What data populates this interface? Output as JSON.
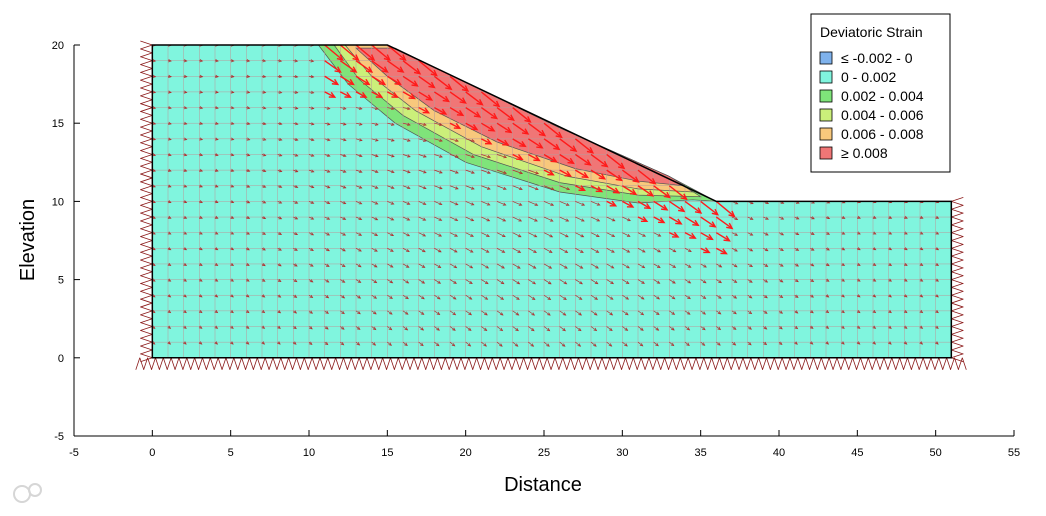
{
  "chart_data": {
    "type": "heatmap",
    "title": "",
    "xlabel": "Distance",
    "ylabel": "Elevation",
    "xlim": [
      -5,
      55
    ],
    "ylim": [
      -5,
      20
    ],
    "xticks": [
      -5,
      0,
      5,
      10,
      15,
      20,
      25,
      30,
      35,
      40,
      45,
      50,
      55
    ],
    "yticks": [
      -5,
      0,
      5,
      10,
      15,
      20
    ],
    "grid": false,
    "legend_position": "top-right",
    "legend": {
      "title": "Deviatoric Strain",
      "entries": [
        {
          "label": "≤ -0.002 - 0",
          "color": "#7fb2ec"
        },
        {
          "label": "0 - 0.002",
          "color": "#80f5de"
        },
        {
          "label": "0.002 - 0.004",
          "color": "#7fe47a"
        },
        {
          "label": "0.004 - 0.006",
          "color": "#cbef7a"
        },
        {
          "label": "0.006 - 0.008",
          "color": "#f8c87c"
        },
        {
          "label": "≥ 0.008",
          "color": "#f07676"
        }
      ]
    },
    "geometry": {
      "slope_outline": [
        [
          0,
          0
        ],
        [
          0,
          20
        ],
        [
          15,
          20
        ],
        [
          36,
          10
        ],
        [
          51,
          10
        ],
        [
          51,
          0
        ]
      ],
      "mesh_spacing": 1
    },
    "strain_zones": [
      {
        "level": "0.002 - 0.004",
        "color": "#7fe47a",
        "boundary": [
          [
            10.6,
            20
          ],
          [
            12.5,
            17.5
          ],
          [
            15.5,
            15
          ],
          [
            20,
            12.5
          ],
          [
            26,
            10.6
          ],
          [
            31,
            9.9
          ],
          [
            34.5,
            10.1
          ],
          [
            36,
            10
          ],
          [
            33,
            11.6
          ],
          [
            26,
            14.7
          ],
          [
            20,
            17.6
          ],
          [
            15,
            20
          ]
        ]
      },
      {
        "level": "0.004 - 0.006",
        "color": "#cbef7a",
        "boundary": [
          [
            11.6,
            20
          ],
          [
            13.2,
            17.8
          ],
          [
            16,
            15.5
          ],
          [
            20.5,
            13
          ],
          [
            26,
            11.2
          ],
          [
            31,
            10.4
          ],
          [
            35,
            10.3
          ],
          [
            33,
            11.6
          ],
          [
            26,
            14.7
          ],
          [
            20,
            17.6
          ],
          [
            15,
            20
          ]
        ]
      },
      {
        "level": "0.006 - 0.008",
        "color": "#f8c87c",
        "boundary": [
          [
            12.3,
            20
          ],
          [
            14,
            18
          ],
          [
            16.8,
            15.8
          ],
          [
            21,
            13.5
          ],
          [
            26.5,
            11.6
          ],
          [
            31,
            10.8
          ],
          [
            34.5,
            10.6
          ],
          [
            33,
            11.6
          ],
          [
            26,
            14.7
          ],
          [
            20,
            17.6
          ],
          [
            15,
            20
          ]
        ]
      },
      {
        "level": "≥ 0.008",
        "color": "#f07676",
        "boundary": [
          [
            13,
            19.8
          ],
          [
            15,
            18
          ],
          [
            18,
            15.8
          ],
          [
            22,
            13.8
          ],
          [
            27,
            12.1
          ],
          [
            31,
            11.3
          ],
          [
            34,
            11
          ],
          [
            33,
            11.6
          ],
          [
            26,
            14.7
          ],
          [
            20,
            17.6
          ],
          [
            15.5,
            19.8
          ]
        ]
      }
    ]
  }
}
